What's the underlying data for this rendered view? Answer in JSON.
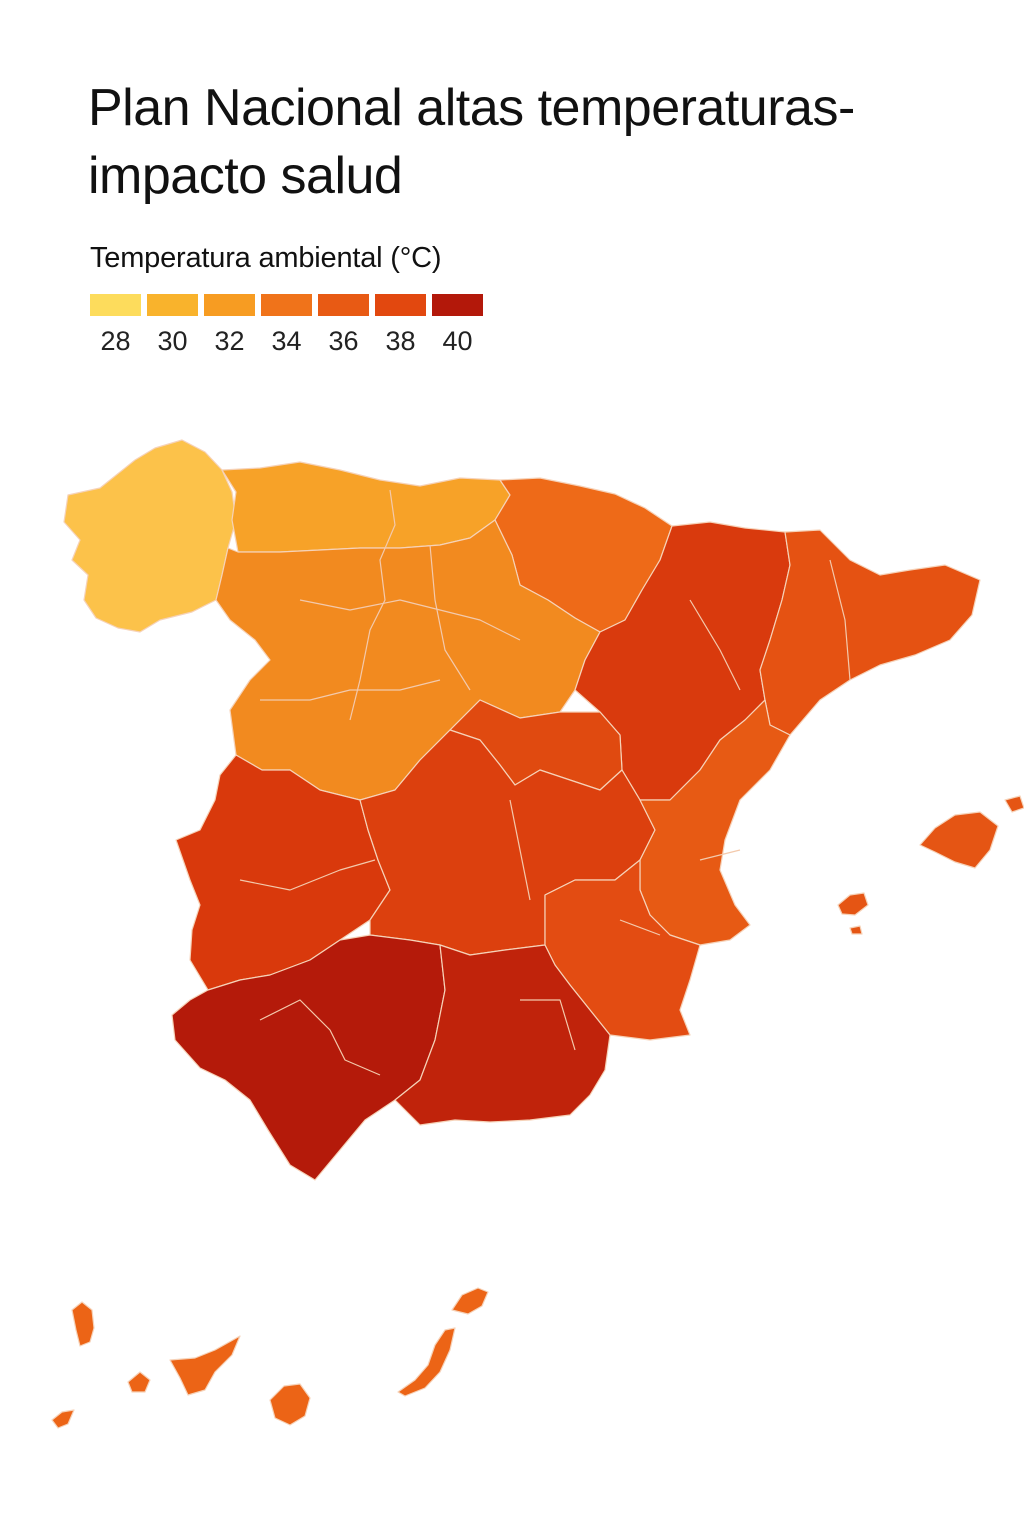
{
  "title": {
    "line1": "Plan Nacional altas temperaturas-",
    "line2": "impacto salud"
  },
  "legend": {
    "title": "Temperatura ambiental (°C)",
    "items": [
      {
        "label": "28",
        "color": "#fddc5c"
      },
      {
        "label": "30",
        "color": "#f9b32c"
      },
      {
        "label": "32",
        "color": "#f79c22"
      },
      {
        "label": "34",
        "color": "#f0731a"
      },
      {
        "label": "36",
        "color": "#e85a14"
      },
      {
        "label": "38",
        "color": "#e2480f"
      },
      {
        "label": "40",
        "color": "#b3180a"
      }
    ]
  },
  "regions": [
    {
      "name": "galicia",
      "color": "#fcc24a"
    },
    {
      "name": "asturias-cantabria",
      "color": "#f7a228"
    },
    {
      "name": "pais-vasco-navarra",
      "color": "#ee6a18"
    },
    {
      "name": "castilla-y-leon",
      "color": "#f28a1f"
    },
    {
      "name": "la-rioja",
      "color": "#f07b1b"
    },
    {
      "name": "aragon",
      "color": "#d93a0d"
    },
    {
      "name": "cataluna",
      "color": "#e55212"
    },
    {
      "name": "madrid",
      "color": "#e04a10"
    },
    {
      "name": "extremadura",
      "color": "#d9390c"
    },
    {
      "name": "castilla-la-mancha",
      "color": "#dc400e"
    },
    {
      "name": "valencia",
      "color": "#e75a14"
    },
    {
      "name": "murcia",
      "color": "#e34c12"
    },
    {
      "name": "andalucia-west",
      "color": "#b41a0a"
    },
    {
      "name": "andalucia-east",
      "color": "#c0230b"
    },
    {
      "name": "baleares",
      "color": "#e55514"
    },
    {
      "name": "canarias",
      "color": "#ec6416"
    }
  ]
}
